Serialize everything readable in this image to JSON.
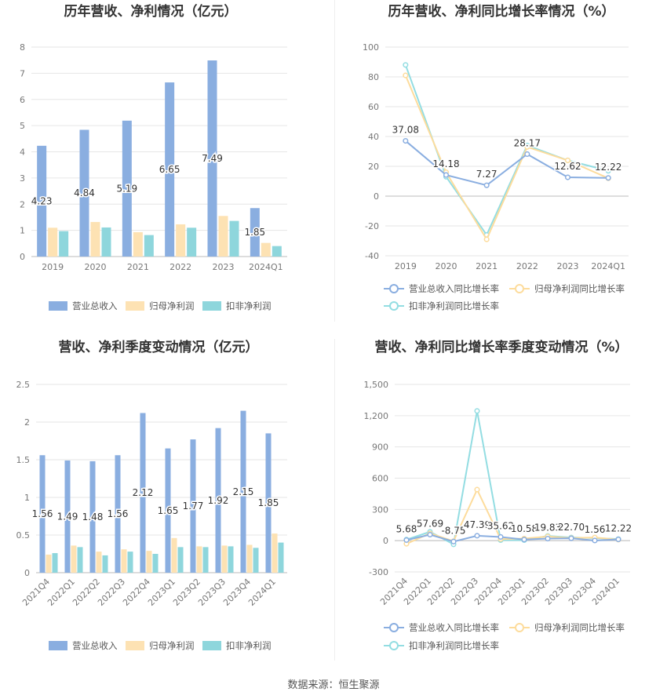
{
  "footer": {
    "source": "数据来源：恒生聚源"
  },
  "colors": {
    "revenue": "#8aaee0",
    "net_profit": "#fde2b3",
    "deducted_profit": "#8ed6dc",
    "revenue_line": "#8aaee0",
    "net_profit_line": "#fddc9c",
    "deducted_line": "#93dde2"
  },
  "chart_data": [
    {
      "type": "bar",
      "title": "历年营收、净利情况（亿元）",
      "categories": [
        "2019",
        "2020",
        "2021",
        "2022",
        "2023",
        "2024Q1"
      ],
      "ylim": [
        0,
        8
      ],
      "yticks": [
        "0",
        "1",
        "2",
        "3",
        "4",
        "5",
        "6",
        "7",
        "8"
      ],
      "series": [
        {
          "name": "营业总收入",
          "values": [
            4.23,
            4.84,
            5.19,
            6.65,
            7.49,
            1.85
          ],
          "labels": [
            "4.23",
            "4.84",
            "5.19",
            "6.65",
            "7.49",
            "1.85"
          ]
        },
        {
          "name": "归母净利润",
          "values": [
            1.1,
            1.32,
            0.93,
            1.23,
            1.55,
            0.52
          ]
        },
        {
          "name": "扣非净利润",
          "values": [
            0.97,
            1.11,
            0.82,
            1.1,
            1.36,
            0.4
          ]
        }
      ]
    },
    {
      "type": "line",
      "title": "历年营收、净利同比增长率情况（%）",
      "categories": [
        "2019",
        "2020",
        "2021",
        "2022",
        "2023",
        "2024Q1"
      ],
      "ylim": [
        -40,
        100
      ],
      "yticks": [
        "-40",
        "-20",
        "0",
        "20",
        "40",
        "60",
        "80",
        "100"
      ],
      "series": [
        {
          "name": "营业总收入同比增长率",
          "values": [
            37.08,
            14.18,
            7.27,
            28.17,
            12.62,
            12.22
          ],
          "labels": [
            "37.08",
            "14.18",
            "7.27",
            "28.17",
            "12.62",
            "12.22"
          ]
        },
        {
          "name": "归母净利润同比增长率",
          "values": [
            81.0,
            16.0,
            -29.0,
            33.0,
            24.0,
            12.0
          ]
        },
        {
          "name": "扣非净利润同比增长率",
          "values": [
            88.0,
            13.0,
            -26.0,
            34.0,
            24.0,
            17.0
          ]
        }
      ]
    },
    {
      "type": "bar",
      "title": "营收、净利季度变动情况（亿元）",
      "categories": [
        "2021Q4",
        "2022Q1",
        "2022Q2",
        "2022Q3",
        "2022Q4",
        "2023Q1",
        "2023Q2",
        "2023Q3",
        "2023Q4",
        "2024Q1"
      ],
      "ylim": [
        0,
        2.5
      ],
      "yticks": [
        "0",
        "0.5",
        "1",
        "1.5",
        "2",
        "2.5"
      ],
      "series": [
        {
          "name": "营业总收入",
          "values": [
            1.56,
            1.49,
            1.48,
            1.56,
            2.12,
            1.65,
            1.77,
            1.92,
            2.15,
            1.85
          ],
          "labels": [
            "1.56",
            "1.49",
            "1.48",
            "1.56",
            "2.12",
            "1.65",
            "1.77",
            "1.92",
            "2.15",
            "1.85"
          ]
        },
        {
          "name": "归母净利润",
          "values": [
            0.24,
            0.36,
            0.28,
            0.31,
            0.29,
            0.46,
            0.35,
            0.36,
            0.37,
            0.52
          ]
        },
        {
          "name": "扣非净利润",
          "values": [
            0.26,
            0.34,
            0.23,
            0.28,
            0.25,
            0.34,
            0.34,
            0.35,
            0.33,
            0.4
          ]
        }
      ]
    },
    {
      "type": "line",
      "title": "营收、净利同比增长率季度变动情况（%）",
      "categories": [
        "2021Q4",
        "2022Q1",
        "2022Q2",
        "2022Q3",
        "2022Q4",
        "2023Q1",
        "2023Q2",
        "2023Q3",
        "2023Q4",
        "2024Q1"
      ],
      "ylim": [
        -300,
        1500
      ],
      "yticks": [
        "-300",
        "0",
        "300",
        "600",
        "900",
        "1,200",
        "1,500"
      ],
      "series": [
        {
          "name": "营业总收入同比增长率",
          "values": [
            5.68,
            57.69,
            -8.75,
            47.39,
            35.62,
            10.58,
            19.83,
            22.7,
            1.56,
            12.22
          ],
          "labels": [
            "5.68",
            "57.69",
            "-8.75",
            "47.39",
            "35.62",
            "10.58",
            "19.83",
            "22.70",
            "1.56",
            "12.22"
          ]
        },
        {
          "name": "归母净利润同比增长率",
          "values": [
            -30,
            70,
            -5,
            490,
            15,
            20,
            40,
            25,
            30,
            10
          ]
        },
        {
          "name": "扣非净利润同比增长率",
          "values": [
            10,
            85,
            -35,
            1245,
            5,
            5,
            45,
            30,
            25,
            15
          ]
        }
      ]
    }
  ]
}
